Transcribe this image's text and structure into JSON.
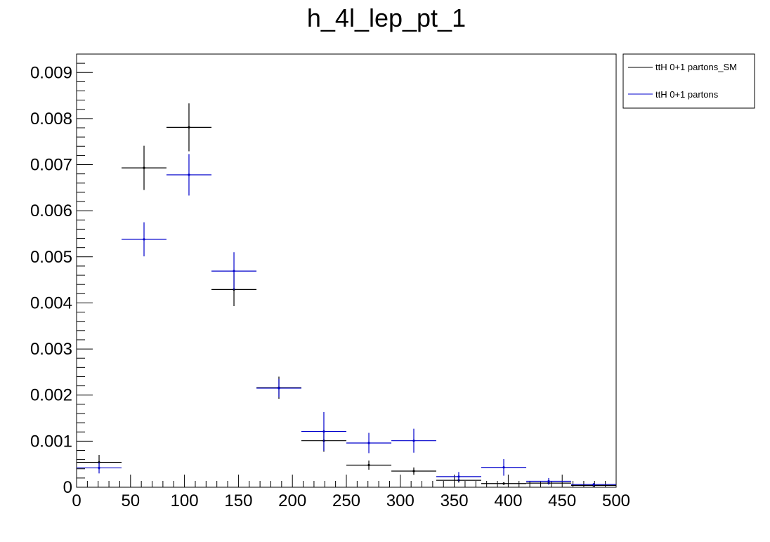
{
  "chart_data": {
    "type": "scatter",
    "title": "h_4l_lep_pt_1",
    "xlabel": "",
    "ylabel": "",
    "xlim": [
      0,
      500
    ],
    "ylim": [
      0,
      0.0094
    ],
    "grid": false,
    "legend_placement": "top-right outside",
    "x_ticks": [
      "0",
      "50",
      "100",
      "150",
      "200",
      "250",
      "300",
      "350",
      "400",
      "450",
      "500"
    ],
    "y_ticks": [
      "0",
      "0.001",
      "0.002",
      "0.003",
      "0.004",
      "0.005",
      "0.006",
      "0.007",
      "0.008",
      "0.009"
    ],
    "x_tick_values": [
      0,
      50,
      100,
      150,
      200,
      250,
      300,
      350,
      400,
      450,
      500
    ],
    "y_tick_values": [
      0,
      0.001,
      0.002,
      0.003,
      0.004,
      0.005,
      0.006,
      0.007,
      0.008,
      0.009
    ],
    "bin_edges": [
      0,
      41.7,
      83.3,
      125,
      166.7,
      208.3,
      250,
      291.7,
      333.3,
      375,
      416.7,
      458.3,
      500
    ],
    "series": [
      {
        "name": "ttH 0+1 partons_SM",
        "color": "#000000",
        "values": [
          0.00054,
          0.00693,
          0.00781,
          0.00429,
          0.00216,
          0.00101,
          0.00048,
          0.00035,
          0.00015,
          8e-05,
          9e-05,
          4e-05
        ],
        "errors": [
          0.00016,
          0.00048,
          0.00052,
          0.00036,
          0.00024,
          0.00024,
          0.0001,
          8e-05,
          5e-05,
          3e-05,
          3e-05,
          2e-05
        ]
      },
      {
        "name": "ttH 0+1 partons",
        "color": "#0000cc",
        "values": [
          0.00042,
          0.00538,
          0.00678,
          0.00469,
          0.00215,
          0.00121,
          0.00096,
          0.00101,
          0.00023,
          0.00043,
          0.00013,
          6e-05
        ],
        "errors": [
          0.00012,
          0.00037,
          0.00045,
          0.00041,
          0.0002,
          0.00042,
          0.00022,
          0.00026,
          0.0001,
          0.00018,
          7e-05,
          3e-05
        ]
      }
    ]
  }
}
